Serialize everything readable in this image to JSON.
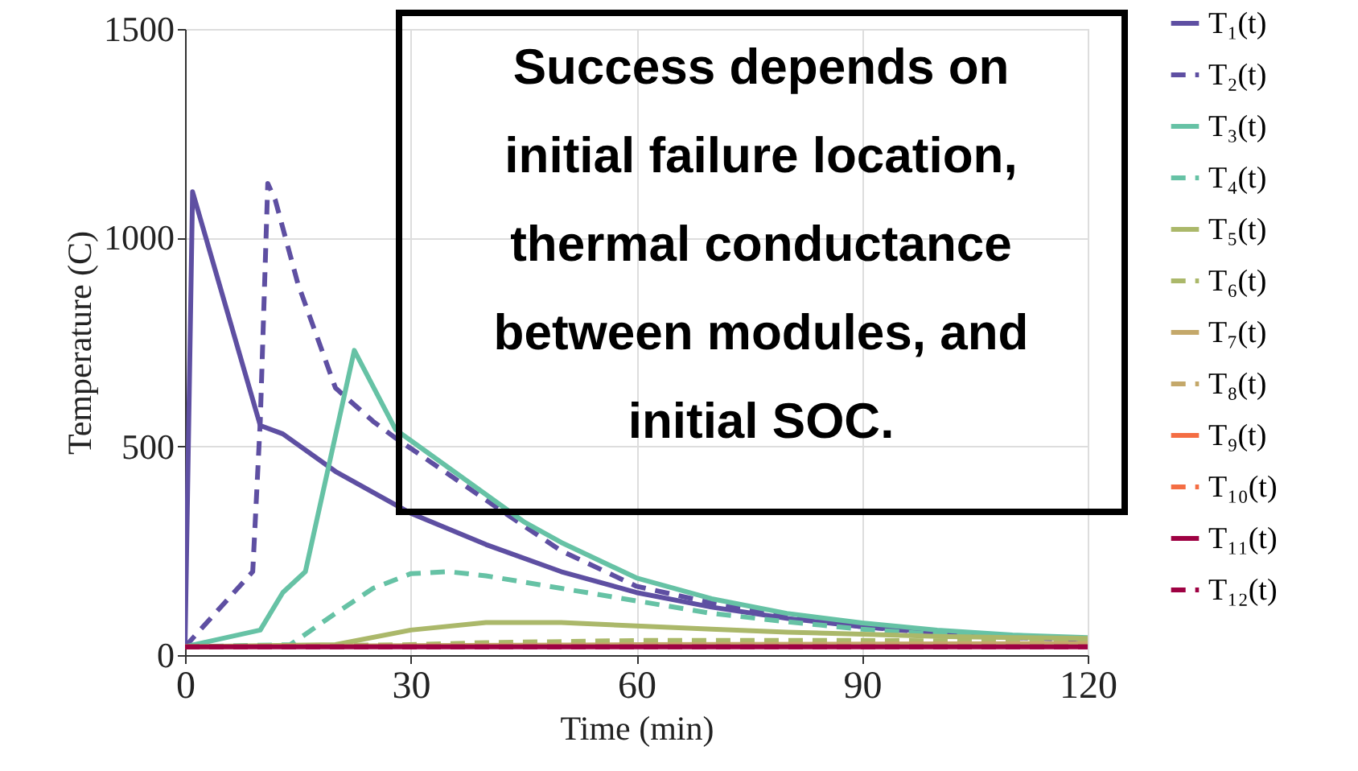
{
  "chart_data": {
    "type": "line",
    "xlabel": "Time (min)",
    "ylabel": "Temperature (C)",
    "xlim": [
      0,
      120
    ],
    "xticks": [
      0,
      30,
      60,
      90,
      120
    ],
    "ylim": [
      0,
      1500
    ],
    "yticks": [
      0,
      500,
      {
        "value": 1000,
        "label": "1000"
      },
      {
        "value": 1500,
        "label": "1500"
      }
    ],
    "grid": true,
    "legend": "right",
    "annotations": [
      "Success depends on initial failure location, thermal conductance between modules, and initial SOC."
    ],
    "series": [
      {
        "name": "T₁(t)",
        "color": "#5e4fa2",
        "line_style": "solid",
        "x": [
          0,
          1,
          10,
          13,
          20,
          28,
          30,
          40,
          50,
          60,
          70,
          80,
          90,
          100,
          110,
          120
        ],
        "values": [
          20,
          1110,
          550,
          530,
          440,
          360,
          340,
          265,
          200,
          150,
          115,
          88,
          68,
          55,
          45,
          38
        ]
      },
      {
        "name": "T₂(t)",
        "color": "#5e4fa2",
        "line_style": "dashed",
        "x": [
          0,
          9,
          10,
          11,
          12,
          15,
          20,
          25,
          28,
          45,
          50,
          60,
          70,
          80,
          90,
          100,
          110,
          120
        ],
        "values": [
          20,
          200,
          560,
          1130,
          1090,
          890,
          640,
          560,
          520,
          310,
          250,
          165,
          125,
          95,
          68,
          52,
          42,
          36
        ]
      },
      {
        "name": "T₃(t)",
        "color": "#66c2a5",
        "line_style": "solid",
        "x": [
          0,
          10,
          13,
          16,
          22.5,
          28,
          45,
          50,
          60,
          70,
          80,
          90,
          100,
          110,
          120
        ],
        "values": [
          20,
          60,
          150,
          200,
          730,
          540,
          320,
          270,
          185,
          135,
          100,
          77,
          60,
          48,
          42
        ]
      },
      {
        "name": "T₄(t)",
        "color": "#66c2a5",
        "line_style": "dashed",
        "x": [
          0,
          14,
          20,
          25,
          30,
          35,
          40,
          50,
          60,
          70,
          80,
          90,
          100,
          110,
          120
        ],
        "values": [
          20,
          25,
          100,
          160,
          195,
          200,
          190,
          160,
          130,
          100,
          80,
          62,
          50,
          42,
          38
        ]
      },
      {
        "name": "T₅(t)",
        "color": "#abb86a",
        "line_style": "solid",
        "x": [
          0,
          20,
          30,
          40,
          50,
          60,
          70,
          80,
          90,
          100,
          110,
          120
        ],
        "values": [
          20,
          25,
          60,
          78,
          78,
          70,
          62,
          55,
          50,
          45,
          42,
          40
        ]
      },
      {
        "name": "T₆(t)",
        "color": "#abb86a",
        "line_style": "dashed",
        "x": [
          0,
          30,
          40,
          60,
          90,
          120
        ],
        "values": [
          20,
          25,
          30,
          35,
          35,
          33
        ]
      },
      {
        "name": "T₇(t)",
        "color": "#c4a86a",
        "line_style": "solid",
        "x": [
          0,
          60,
          120
        ],
        "values": [
          20,
          25,
          28
        ]
      },
      {
        "name": "T₈(t)",
        "color": "#c4a86a",
        "line_style": "dashed"
      },
      {
        "name": "T₉(t)",
        "color": "#f46d43",
        "line_style": "solid"
      },
      {
        "name": "T₁₀(t)",
        "color": "#f46d43",
        "line_style": "dashed"
      },
      {
        "name": "T₁₁(t)",
        "color": "#9e0142",
        "line_style": "solid",
        "x": [
          0,
          120
        ],
        "values": [
          20,
          20
        ]
      },
      {
        "name": "T₁₂(t)",
        "color": "#9e0142",
        "line_style": "dashed",
        "x": [
          0,
          120
        ],
        "values": [
          20,
          20
        ]
      }
    ]
  }
}
